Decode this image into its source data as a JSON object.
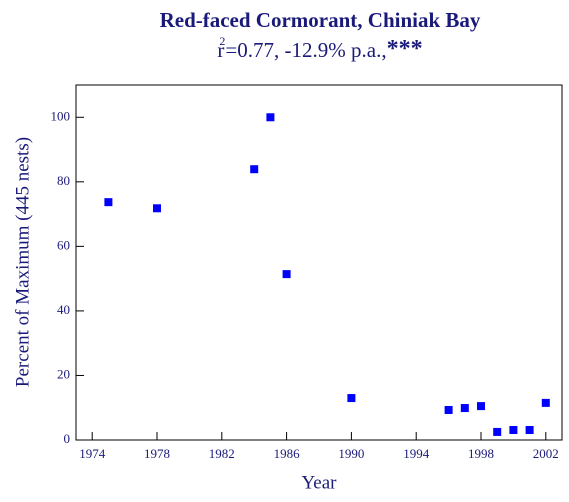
{
  "chart_data": {
    "type": "scatter",
    "title": "Red-faced Cormorant, Chiniak Bay",
    "subtitle": [
      "r",
      "2",
      "=0.77, -12.9% p.a.,",
      "***"
    ],
    "x_label": "Year",
    "y_label": "Percent of Maximum (445 nests)",
    "x": [
      1975,
      1978,
      1984,
      1985,
      1986,
      1990,
      1996,
      1997,
      1998,
      1999,
      2000,
      2001,
      2002
    ],
    "values": [
      73.7,
      71.8,
      83.9,
      100,
      51.4,
      13.0,
      9.3,
      9.9,
      10.5,
      2.5,
      3.1,
      3.1,
      11.5
    ],
    "color": "#0000ff",
    "xlim": [
      1973,
      2003
    ],
    "xticks": [
      1974,
      1978,
      1982,
      1986,
      1990,
      1994,
      1998,
      2002
    ],
    "ylim": [
      0,
      110
    ],
    "yticks": [
      0,
      20,
      40,
      60,
      80,
      100
    ]
  }
}
